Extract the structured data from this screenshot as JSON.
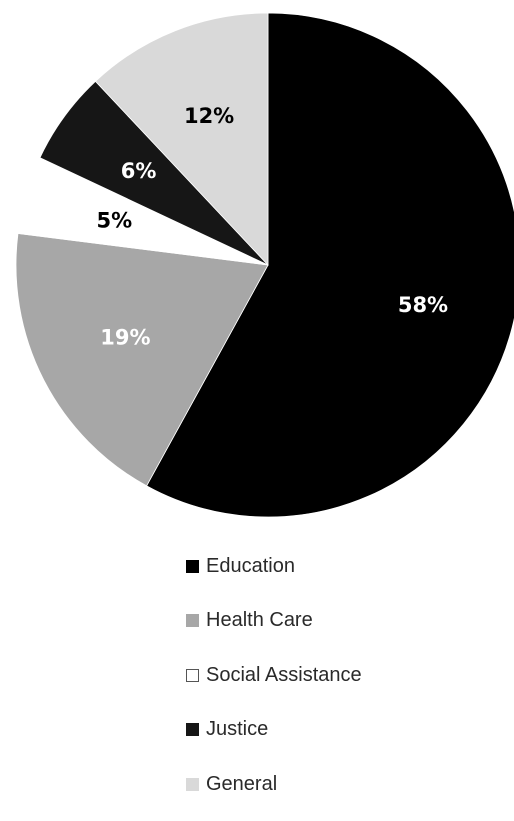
{
  "chart_data": {
    "type": "pie",
    "start_angle_deg": 0,
    "direction": "clockwise",
    "slices": [
      {
        "label": "Education",
        "value": 58,
        "value_label": "58%",
        "color": "#000000",
        "text_color": "#ffffff"
      },
      {
        "label": "Health Care",
        "value": 19,
        "value_label": "19%",
        "color": "#a7a7a7",
        "text_color": "#ffffff"
      },
      {
        "label": "Social Assistance",
        "value": 5,
        "value_label": "5%",
        "color": "#ffffff",
        "text_color": "#000000"
      },
      {
        "label": "Justice",
        "value": 6,
        "value_label": "6%",
        "color": "#161616",
        "text_color": "#ffffff"
      },
      {
        "label": "General",
        "value": 12,
        "value_label": "12%",
        "color": "#d9d9d9",
        "text_color": "#000000"
      }
    ],
    "legend_position": "bottom"
  }
}
